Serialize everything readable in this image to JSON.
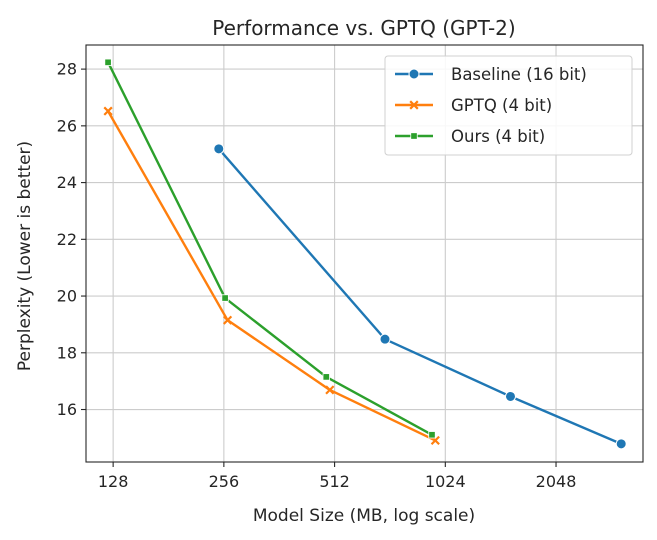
{
  "chart_data": {
    "type": "line",
    "title": "Performance vs. GPTQ (GPT-2)",
    "xlabel": "Model Size (MB, log scale)",
    "ylabel": "Perplexity (Lower is better)",
    "x_scale": "log2",
    "xlim": [
      108,
      3530
    ],
    "ylim": [
      14.15,
      28.85
    ],
    "x_ticks": [
      128,
      256,
      512,
      1024,
      2048
    ],
    "x_tick_labels": [
      "128",
      "256",
      "512",
      "1024",
      "2048"
    ],
    "y_ticks": [
      16,
      18,
      20,
      22,
      24,
      26,
      28
    ],
    "y_tick_labels": [
      "16",
      "18",
      "20",
      "22",
      "24",
      "26",
      "28"
    ],
    "grid": true,
    "legend_position": "top-right",
    "series": [
      {
        "name": "Baseline (16 bit)",
        "color": "#1f77b4",
        "marker": "circle",
        "x": [
          248,
          702,
          1540,
          3080
        ],
        "y": [
          25.19,
          18.48,
          16.46,
          14.79
        ]
      },
      {
        "name": "GPTQ (4 bit)",
        "color": "#ff7f0e",
        "marker": "x",
        "x": [
          124,
          262,
          497,
          962
        ],
        "y": [
          26.52,
          19.15,
          16.69,
          14.91
        ]
      },
      {
        "name": "Ours (4 bit)",
        "color": "#2ca02c",
        "marker": "square",
        "x": [
          124,
          258,
          486,
          942
        ],
        "y": [
          28.24,
          19.93,
          17.15,
          15.11
        ]
      }
    ]
  }
}
